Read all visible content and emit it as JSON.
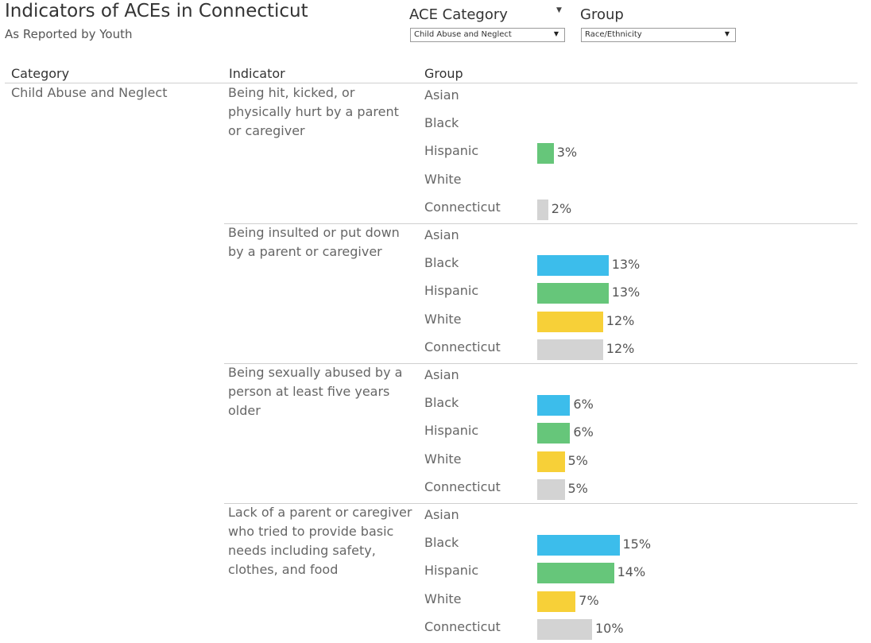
{
  "header": {
    "title": "Indicators of ACEs in Connecticut",
    "subtitle": "As Reported by Youth"
  },
  "filters": {
    "ace_category": {
      "label": "ACE Category",
      "selected": "Child Abuse and Neglect"
    },
    "group": {
      "label": "Group",
      "selected": "Race/Ethnicity"
    }
  },
  "columns": {
    "category": "Category",
    "indicator": "Indicator",
    "group": "Group"
  },
  "chart_data": {
    "type": "bar",
    "orientation": "horizontal",
    "category": "Child Abuse and Neglect",
    "groups": [
      "Asian",
      "Black",
      "Hispanic",
      "White",
      "Connecticut"
    ],
    "value_unit": "%",
    "colors": {
      "Asian": "#8fb3d9",
      "Black": "#3cbdeb",
      "Hispanic": "#66c67a",
      "White": "#f7d038",
      "Connecticut": "#d3d3d3"
    },
    "indicators": [
      {
        "name": "Being hit, kicked, or physically hurt by a parent or caregiver",
        "values": [
          null,
          null,
          3,
          null,
          2
        ],
        "labels": [
          "",
          "",
          "3%",
          "",
          "2%"
        ]
      },
      {
        "name": "Being insulted or put down by a parent or caregiver",
        "values": [
          null,
          13,
          13,
          12,
          12
        ],
        "labels": [
          "",
          "13%",
          "13%",
          "12%",
          "12%"
        ]
      },
      {
        "name": "Being sexually abused by a person at least five years older",
        "values": [
          null,
          6,
          6,
          5,
          5
        ],
        "labels": [
          "",
          "6%",
          "6%",
          "5%",
          "5%"
        ]
      },
      {
        "name": "Lack of a parent or caregiver who tried to provide basic needs including safety, clothes, and food",
        "values": [
          null,
          15,
          14,
          7,
          10
        ],
        "labels": [
          "",
          "15%",
          "14%",
          "7%",
          "10%"
        ]
      }
    ]
  }
}
